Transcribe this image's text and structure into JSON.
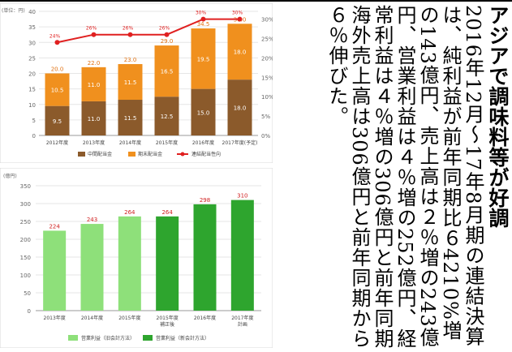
{
  "article": {
    "headline": "アジアで調味料等が好調",
    "body": "2016年12月～17年8月期の連結決算は、純利益が前年同期比６4210%増の143億円、売上高は２％増の243億円、営業利益は４％増の252億円、経常利益は４％増の306億円と前年同期海外売上高は306億円と前年同期から６％伸びた。"
  },
  "chart_data": [
    {
      "type": "bar",
      "stacked": true,
      "unit_label": "(単位：円)",
      "categories": [
        "2012年度",
        "2013年度",
        "2014年度",
        "2015年度",
        "2016年度",
        "2017年度(予定)"
      ],
      "series": [
        {
          "name": "中間配当金",
          "color": "#8b5a2b",
          "values": [
            9.5,
            11.0,
            11.5,
            12.5,
            15.0,
            18.0
          ]
        },
        {
          "name": "期末配当金",
          "color": "#f0901e",
          "values": [
            10.5,
            11.0,
            11.5,
            16.5,
            19.5,
            18.0
          ]
        }
      ],
      "totals": [
        20.0,
        22.0,
        23.0,
        29.0,
        34.5,
        36.0
      ],
      "line": {
        "name": "連結配当性向",
        "color": "#e02020",
        "values": [
          24,
          26,
          26,
          26,
          30,
          30
        ]
      },
      "ylim": [
        0,
        40
      ],
      "y_ticks": [
        0,
        5,
        10,
        15,
        20,
        25,
        30,
        35,
        40
      ],
      "y2lim": [
        0,
        32
      ],
      "y2_ticks": [
        "0%",
        "5%",
        "10%",
        "15%",
        "20%",
        "25%",
        "30%"
      ],
      "legend_position": "bottom"
    },
    {
      "type": "bar",
      "unit_label": "(億円)",
      "categories": [
        "2013年度",
        "2014年度",
        "2015年度",
        "2015年度 補正後",
        "2016年度",
        "2017年度 計画"
      ],
      "values": [
        224,
        243,
        264,
        264,
        298,
        310
      ],
      "colors": [
        "#8ee07a",
        "#8ee07a",
        "#8ee07a",
        "#2ea52e",
        "#2ea52e",
        "#2ea52e"
      ],
      "value_label_color": "#d02020",
      "legend": [
        {
          "name": "営業利益（旧会計方法）",
          "color": "#8ee07a"
        },
        {
          "name": "営業利益（新会計方法）",
          "color": "#2ea52e"
        }
      ],
      "ylim": [
        0,
        350
      ],
      "y_ticks": [
        0,
        50,
        100,
        150,
        200,
        250,
        300,
        350
      ],
      "legend_position": "bottom"
    }
  ]
}
